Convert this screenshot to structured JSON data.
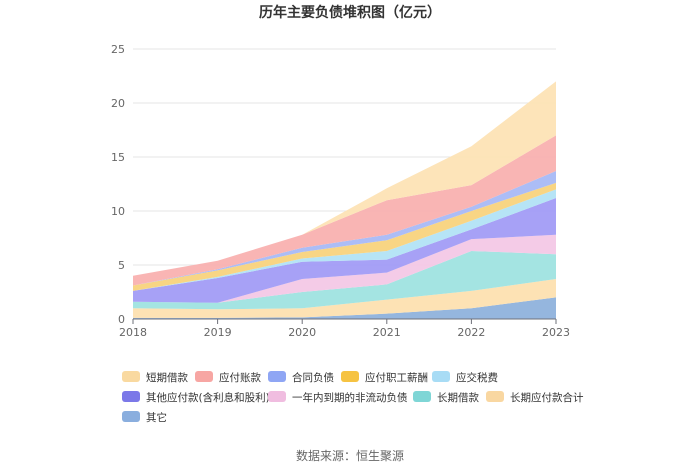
{
  "chart_data": {
    "type": "area",
    "stacked": true,
    "title": "历年主要负债堆积图（亿元）",
    "source": "数据来源：恒生聚源",
    "x": [
      "2018",
      "2019",
      "2020",
      "2021",
      "2022",
      "2023"
    ],
    "ylim": [
      0,
      25
    ],
    "yticks": [
      "0",
      "5",
      "10",
      "15",
      "20",
      "25"
    ],
    "grid": true,
    "legend_position": "bottom",
    "series": [
      {
        "name": "其它",
        "color": "#8fb2dc",
        "values": [
          0.1,
          0.1,
          0.15,
          0.5,
          1.0,
          2.0
        ]
      },
      {
        "name": "长期应付款合计",
        "color": "#fde0b0",
        "values": [
          0.9,
          0.8,
          0.85,
          1.3,
          1.6,
          1.7
        ]
      },
      {
        "name": "长期借款",
        "color": "#9fe3e0",
        "values": [
          0.6,
          0.6,
          1.5,
          1.4,
          3.7,
          2.3
        ]
      },
      {
        "name": "一年内到期的非流动负债",
        "color": "#f3c8e6",
        "values": [
          0.0,
          0.0,
          1.2,
          1.1,
          1.1,
          1.8
        ]
      },
      {
        "name": "其他应付款(含利息和股利)",
        "color": "#a29cf5",
        "values": [
          1.0,
          2.3,
          1.6,
          1.2,
          0.9,
          3.4
        ]
      },
      {
        "name": "应交税费",
        "color": "#b2e3f5",
        "values": [
          0.0,
          0.1,
          0.3,
          0.8,
          0.8,
          0.8
        ]
      },
      {
        "name": "应付职工薪酬",
        "color": "#f8d37d",
        "values": [
          0.5,
          0.6,
          0.6,
          1.0,
          0.9,
          0.6
        ]
      },
      {
        "name": "合同负债",
        "color": "#a8b9f5",
        "values": [
          0.0,
          0.1,
          0.4,
          0.5,
          0.4,
          1.1
        ]
      },
      {
        "name": "应付账款",
        "color": "#f9b1b0",
        "values": [
          0.9,
          0.8,
          1.2,
          3.2,
          2.0,
          3.3
        ]
      },
      {
        "name": "短期借款",
        "color": "#fde3b5",
        "values": [
          0.0,
          0.0,
          0.0,
          1.1,
          3.6,
          5.0
        ]
      }
    ],
    "legend": [
      {
        "name": "短期借款",
        "color": "#f9d9a0"
      },
      {
        "name": "应付账款",
        "color": "#f7a6a3"
      },
      {
        "name": "合同负债",
        "color": "#8fa6f4"
      },
      {
        "name": "应付职工薪酬",
        "color": "#f6c342"
      },
      {
        "name": "应交税费",
        "color": "#a8dcf5"
      },
      {
        "name": "其他应付款(含利息和股利)",
        "color": "#7b78e8"
      },
      {
        "name": "一年内到期的非流动负债",
        "color": "#f0bde0"
      },
      {
        "name": "长期借款",
        "color": "#7fd6d6"
      },
      {
        "name": "长期应付款合计",
        "color": "#f9d7a1"
      },
      {
        "name": "其它",
        "color": "#8aaede"
      }
    ]
  }
}
